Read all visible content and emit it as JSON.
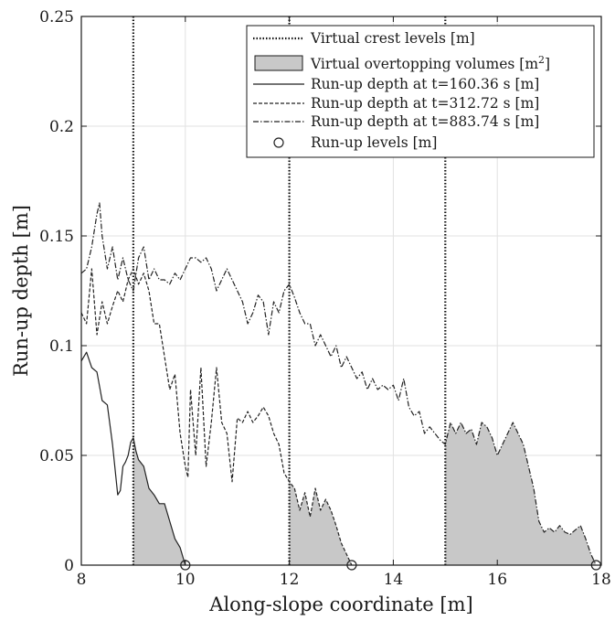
{
  "chart_data": {
    "type": "line",
    "xlabel": "Along-slope coordinate [m]",
    "ylabel": "Run-up depth [m]",
    "xlim": [
      8,
      18
    ],
    "ylim": [
      0,
      0.25
    ],
    "xticks": [
      8,
      10,
      12,
      14,
      16,
      18
    ],
    "xtick_labels": [
      "8",
      "10",
      "12",
      "14",
      "16",
      "18"
    ],
    "yticks": [
      0,
      0.05,
      0.1,
      0.15,
      0.2,
      0.25
    ],
    "ytick_labels": [
      "0",
      "0.05",
      "0.1",
      "0.15",
      "0.2",
      "0.25"
    ],
    "grid": true,
    "legend_position": "top-right",
    "legend": {
      "crest": "Virtual crest levels [m]",
      "overtopping": "Virtual overtopping volumes [m",
      "overtopping_sup": "2",
      "overtopping_close": "]",
      "series1": "Run-up depth at t=160.36 s [m]",
      "series2": "Run-up depth at t=312.72 s [m]",
      "series3": "Run-up depth at t=883.74 s [m]",
      "runup_levels": "Run-up levels [m]"
    },
    "crest_levels": [
      9,
      12,
      15
    ],
    "runup_levels": [
      10,
      13.2,
      17.9
    ],
    "series": [
      {
        "name": "Run-up depth at t=160.36 s [m]",
        "style": "solid",
        "x": [
          8.0,
          8.1,
          8.2,
          8.3,
          8.4,
          8.5,
          8.6,
          8.7,
          8.75,
          8.8,
          8.85,
          8.9,
          8.95,
          9.0,
          9.05,
          9.1,
          9.2,
          9.3,
          9.4,
          9.5,
          9.6,
          9.7,
          9.8,
          9.9,
          10.0
        ],
        "y": [
          0.093,
          0.097,
          0.09,
          0.088,
          0.075,
          0.073,
          0.055,
          0.032,
          0.034,
          0.045,
          0.047,
          0.05,
          0.056,
          0.058,
          0.052,
          0.048,
          0.045,
          0.035,
          0.032,
          0.028,
          0.028,
          0.02,
          0.012,
          0.008,
          0.0
        ]
      },
      {
        "name": "Run-up depth at t=312.72 s [m]",
        "style": "dashed",
        "x": [
          8.0,
          8.1,
          8.2,
          8.3,
          8.4,
          8.5,
          8.6,
          8.7,
          8.8,
          8.9,
          9.0,
          9.1,
          9.2,
          9.3,
          9.4,
          9.5,
          9.6,
          9.7,
          9.8,
          9.9,
          10.0,
          10.05,
          10.1,
          10.2,
          10.3,
          10.4,
          10.5,
          10.6,
          10.7,
          10.8,
          10.9,
          11.0,
          11.1,
          11.2,
          11.3,
          11.4,
          11.5,
          11.6,
          11.7,
          11.8,
          11.9,
          12.0,
          12.1,
          12.2,
          12.3,
          12.4,
          12.5,
          12.6,
          12.7,
          12.8,
          12.9,
          13.0,
          13.1,
          13.2
        ],
        "y": [
          0.115,
          0.11,
          0.135,
          0.105,
          0.12,
          0.11,
          0.118,
          0.125,
          0.12,
          0.13,
          0.135,
          0.128,
          0.133,
          0.125,
          0.11,
          0.11,
          0.095,
          0.08,
          0.087,
          0.06,
          0.045,
          0.04,
          0.08,
          0.05,
          0.09,
          0.045,
          0.065,
          0.09,
          0.065,
          0.06,
          0.038,
          0.067,
          0.065,
          0.07,
          0.065,
          0.068,
          0.072,
          0.068,
          0.06,
          0.055,
          0.042,
          0.038,
          0.035,
          0.025,
          0.033,
          0.022,
          0.035,
          0.025,
          0.03,
          0.025,
          0.018,
          0.01,
          0.005,
          0.0
        ]
      },
      {
        "name": "Run-up depth at t=883.74 s [m]",
        "style": "dashdot",
        "x": [
          8.0,
          8.1,
          8.2,
          8.3,
          8.35,
          8.4,
          8.5,
          8.6,
          8.7,
          8.8,
          8.9,
          9.0,
          9.1,
          9.2,
          9.3,
          9.4,
          9.5,
          9.6,
          9.7,
          9.8,
          9.9,
          10.0,
          10.1,
          10.2,
          10.3,
          10.4,
          10.5,
          10.6,
          10.7,
          10.8,
          10.9,
          11.0,
          11.1,
          11.2,
          11.3,
          11.4,
          11.5,
          11.6,
          11.7,
          11.8,
          11.9,
          12.0,
          12.1,
          12.2,
          12.3,
          12.4,
          12.5,
          12.6,
          12.7,
          12.8,
          12.9,
          13.0,
          13.1,
          13.2,
          13.3,
          13.4,
          13.5,
          13.6,
          13.7,
          13.8,
          13.9,
          14.0,
          14.1,
          14.2,
          14.3,
          14.4,
          14.5,
          14.6,
          14.7,
          14.8,
          14.9,
          15.0,
          15.1,
          15.2,
          15.3,
          15.4,
          15.5,
          15.6,
          15.7,
          15.8,
          15.9,
          16.0,
          16.1,
          16.2,
          16.3,
          16.4,
          16.5,
          16.6,
          16.7,
          16.8,
          16.9,
          17.0,
          17.1,
          17.2,
          17.3,
          17.4,
          17.5,
          17.6,
          17.7,
          17.8,
          17.9
        ],
        "y": [
          0.133,
          0.135,
          0.145,
          0.16,
          0.165,
          0.15,
          0.135,
          0.145,
          0.13,
          0.14,
          0.13,
          0.125,
          0.14,
          0.145,
          0.13,
          0.135,
          0.13,
          0.13,
          0.128,
          0.133,
          0.13,
          0.135,
          0.14,
          0.14,
          0.138,
          0.14,
          0.135,
          0.125,
          0.13,
          0.135,
          0.13,
          0.125,
          0.12,
          0.11,
          0.115,
          0.123,
          0.12,
          0.105,
          0.12,
          0.115,
          0.125,
          0.128,
          0.122,
          0.115,
          0.11,
          0.11,
          0.1,
          0.105,
          0.1,
          0.095,
          0.1,
          0.09,
          0.095,
          0.09,
          0.085,
          0.088,
          0.08,
          0.085,
          0.08,
          0.082,
          0.08,
          0.082,
          0.075,
          0.085,
          0.072,
          0.068,
          0.07,
          0.06,
          0.063,
          0.06,
          0.057,
          0.055,
          0.065,
          0.06,
          0.065,
          0.06,
          0.062,
          0.055,
          0.065,
          0.063,
          0.058,
          0.05,
          0.055,
          0.06,
          0.065,
          0.06,
          0.055,
          0.045,
          0.035,
          0.02,
          0.015,
          0.017,
          0.015,
          0.018,
          0.015,
          0.014,
          0.016,
          0.018,
          0.012,
          0.005,
          0.0
        ]
      }
    ]
  }
}
